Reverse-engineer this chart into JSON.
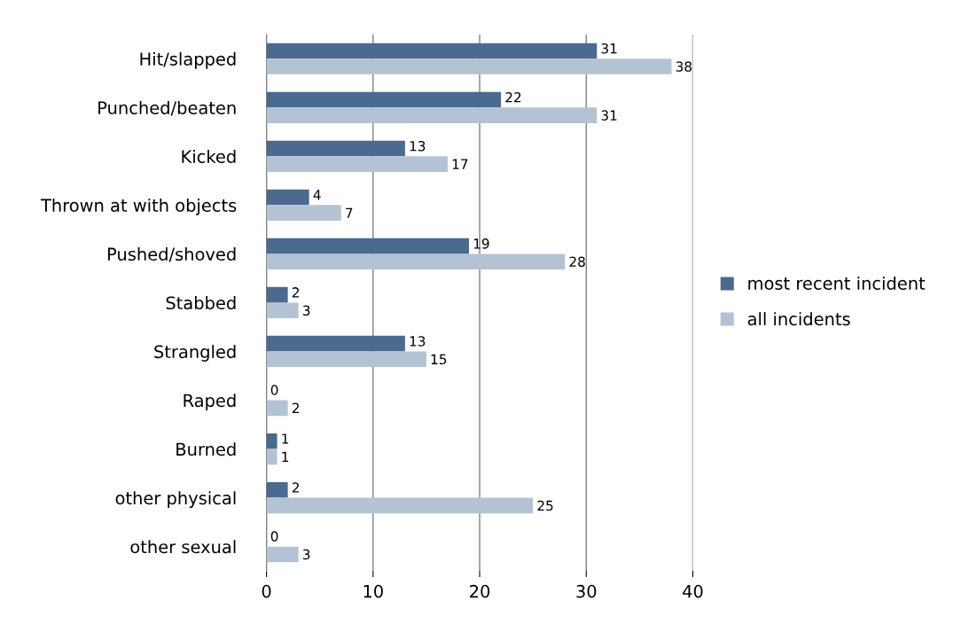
{
  "chart_data": {
    "type": "bar",
    "orientation": "horizontal",
    "categories": [
      "Hit/slapped",
      "Punched/beaten",
      "Kicked",
      "Thrown at with objects",
      "Pushed/shoved",
      "Stabbed",
      "Strangled",
      "Raped",
      "Burned",
      "other physical",
      "other sexual"
    ],
    "series": [
      {
        "name": "most recent incident",
        "color": "#4a6a8f",
        "values": [
          31,
          22,
          13,
          4,
          19,
          2,
          13,
          0,
          1,
          2,
          0
        ]
      },
      {
        "name": "all incidents",
        "color": "#b3c3d4",
        "values": [
          38,
          31,
          17,
          7,
          28,
          3,
          15,
          2,
          1,
          25,
          3
        ]
      }
    ],
    "xlim": [
      0,
      40
    ],
    "xticks": [
      0,
      10,
      20,
      30,
      40
    ],
    "grid": "x",
    "legend": "right",
    "data_labels": true
  }
}
